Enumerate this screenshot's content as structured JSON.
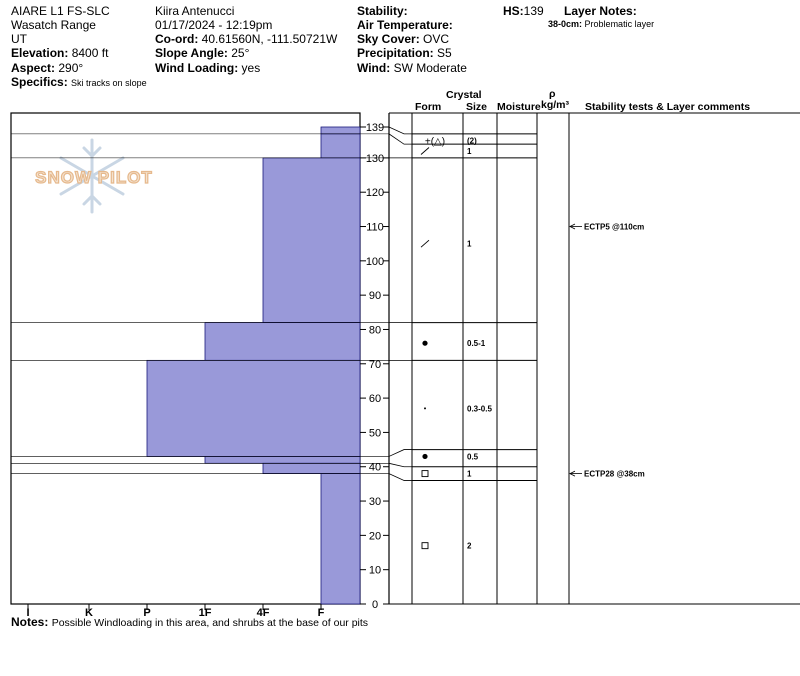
{
  "header": {
    "col1": {
      "title": "AIARE L1 FS-SLC",
      "range": "Wasatch Range",
      "state": "UT",
      "elevation_label": "Elevation:",
      "elevation_value": "8400 ft",
      "aspect_label": "Aspect:",
      "aspect_value": "290°",
      "specifics_label": "Specifics:",
      "specifics_value": "Ski tracks on slope"
    },
    "col2": {
      "observer": "Kiira Antenucci",
      "datetime": "01/17/2024 - 12:19pm",
      "coord_label": "Co-ord:",
      "coord_value": "40.61560N, -111.50721W",
      "slope_label": "Slope Angle:",
      "slope_value": "25°",
      "wind_loading_label": "Wind Loading:",
      "wind_loading_value": "yes"
    },
    "col3": {
      "stability_label": "Stability:",
      "air_temp_label": "Air Temperature:",
      "sky_label": "Sky Cover:",
      "sky_value": "OVC",
      "precip_label": "Precipitation:",
      "precip_value": "S5",
      "wind_label": "Wind:",
      "wind_value": "SW Moderate"
    },
    "col4": {
      "hs_label": "HS:",
      "hs_value": "139",
      "layer_notes_label": "Layer Notes:",
      "layer_note_range": "38-0cm:",
      "layer_note_text": "Problematic layer"
    }
  },
  "table_headers": {
    "crystal": "Crystal",
    "form": "Form",
    "size": "Size",
    "moisture": "Moisture",
    "rho": "ρ",
    "density_unit": "kg/m³",
    "comments": "Stability tests & Layer comments"
  },
  "logo_text": "SNOW PILOT",
  "notes": {
    "label": "Notes:",
    "text": "Possible Windloading in this area, and shrubs at the base of our pits"
  },
  "chart_data": {
    "type": "bar",
    "orientation": "horizontal",
    "description_note": "Snow profile hand hardness bars by height (cm)",
    "hardness_scale": [
      "I",
      "K",
      "P",
      "1F",
      "4F",
      "F"
    ],
    "height_axis": {
      "min": 0,
      "max": 139,
      "ticks": [
        0,
        10,
        20,
        30,
        40,
        50,
        60,
        70,
        80,
        90,
        100,
        110,
        120,
        130,
        139
      ]
    },
    "bar_color": "#9999d9",
    "layers": [
      {
        "top": 139,
        "bottom": 137,
        "hardness": "F"
      },
      {
        "top": 137,
        "bottom": 130,
        "hardness": "F"
      },
      {
        "top": 130,
        "bottom": 82,
        "hardness": "4F"
      },
      {
        "top": 82,
        "bottom": 71,
        "hardness": "1F"
      },
      {
        "top": 71,
        "bottom": 43,
        "hardness": "P"
      },
      {
        "top": 43,
        "bottom": 41,
        "hardness": "1F"
      },
      {
        "top": 41,
        "bottom": 38,
        "hardness": "4F"
      },
      {
        "top": 38,
        "bottom": 0,
        "hardness": "F"
      }
    ]
  },
  "crystals": [
    {
      "height": 135,
      "row_top": 137,
      "row_bottom": 134,
      "form": "+(△)",
      "size": "(2)"
    },
    {
      "height": 132,
      "row_top": 134,
      "row_bottom": 130,
      "form": "/",
      "size": "1"
    },
    {
      "height": 105,
      "row_top": 130,
      "row_bottom": 82,
      "form": "/",
      "size": "1"
    },
    {
      "height": 76,
      "row_top": 82,
      "row_bottom": 71,
      "form": "●",
      "size": "0.5-1"
    },
    {
      "height": 57,
      "row_top": 71,
      "row_bottom": 45,
      "form": "·",
      "size": "0.3-0.5"
    },
    {
      "height": 43,
      "row_top": 45,
      "row_bottom": 40,
      "form": "●",
      "size": "0.5"
    },
    {
      "height": 38,
      "row_top": 40,
      "row_bottom": 36,
      "form": "□",
      "size": "1"
    },
    {
      "height": 17,
      "row_top": 36,
      "row_bottom": 0,
      "form": "□",
      "size": "2"
    }
  ],
  "stability_tests": [
    {
      "height": 110,
      "label": "ECTP5 @110cm"
    },
    {
      "height": 38,
      "label": "ECTP28 @38cm"
    }
  ]
}
